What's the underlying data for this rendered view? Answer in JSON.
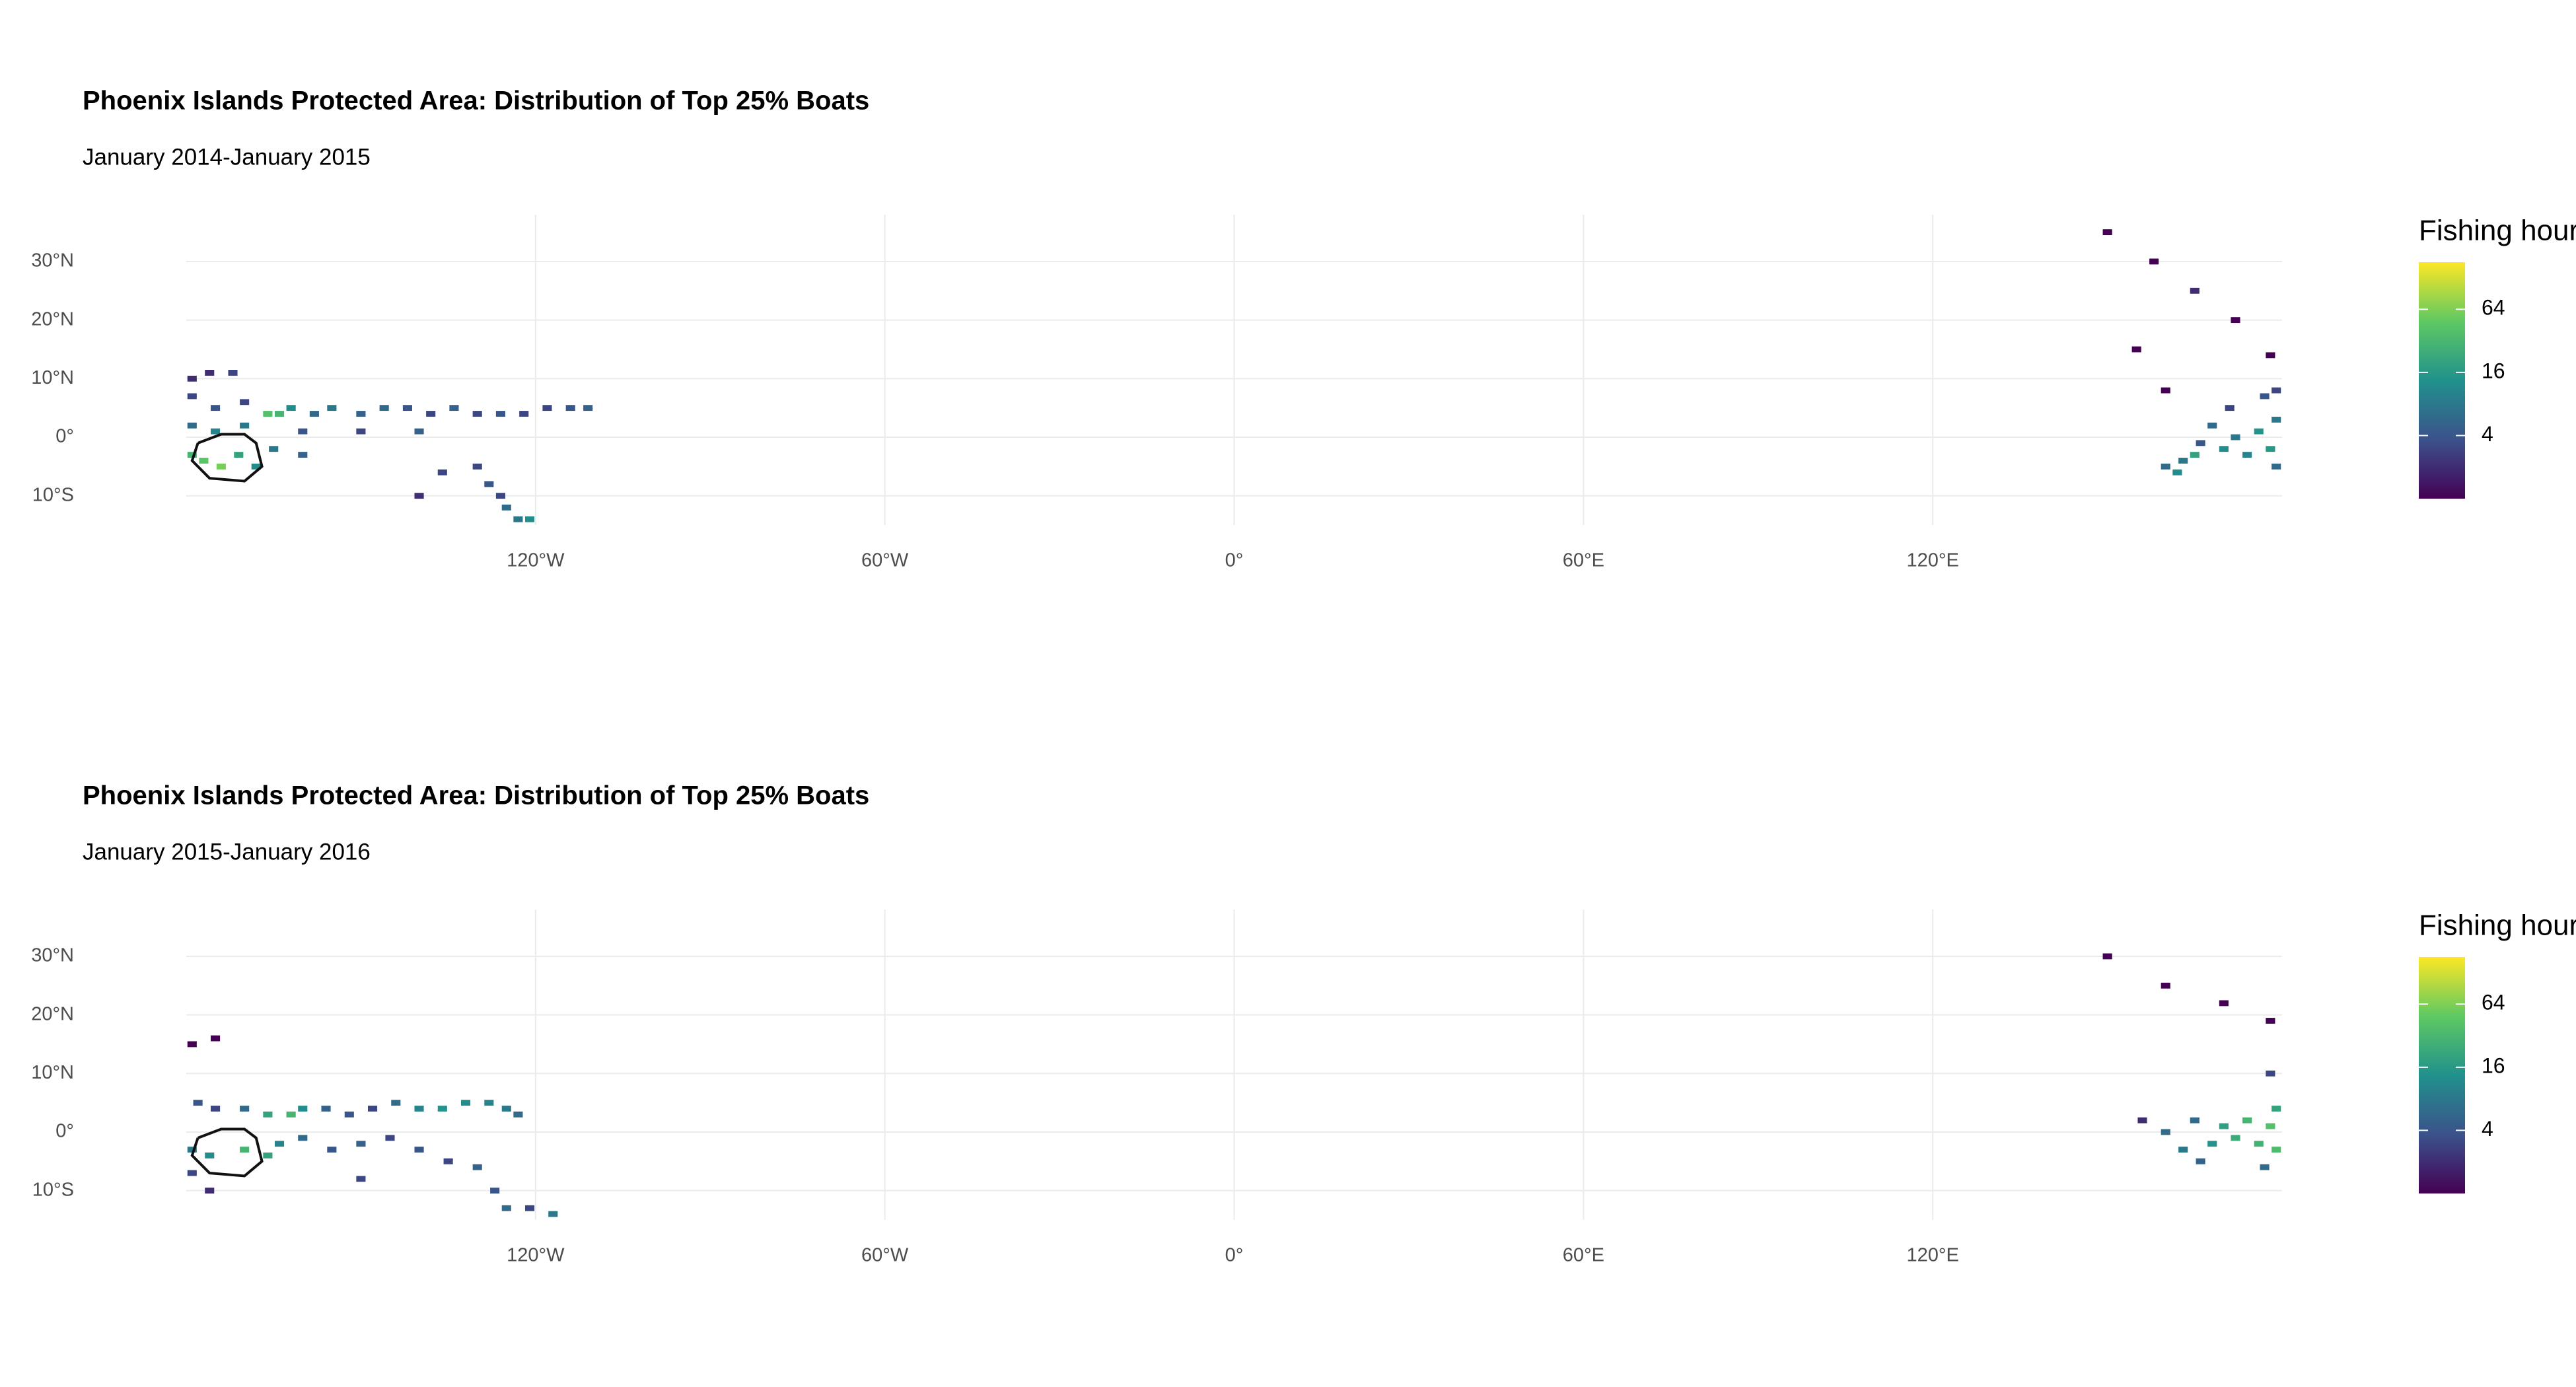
{
  "chart_data": [
    {
      "type": "map",
      "title": "Phoenix Islands Protected Area: Distribution of Top 25% Boats",
      "subtitle": "January 2014-January 2015",
      "xlim": [
        -180,
        180
      ],
      "ylim": [
        -15,
        38
      ],
      "xticks": [
        {
          "value": -120,
          "label": "120°W"
        },
        {
          "value": -60,
          "label": "60°W"
        },
        {
          "value": 0,
          "label": "0°"
        },
        {
          "value": 60,
          "label": "60°E"
        },
        {
          "value": 120,
          "label": "120°E"
        }
      ],
      "yticks": [
        {
          "value": -10,
          "label": "10°S"
        },
        {
          "value": 0,
          "label": "0°"
        },
        {
          "value": 10,
          "label": "10°N"
        },
        {
          "value": 20,
          "label": "20°N"
        },
        {
          "value": 30,
          "label": "30°N"
        }
      ],
      "grid": true,
      "x": [
        -179,
        -176,
        -172,
        -179,
        -175,
        -170,
        -166,
        -164,
        -162,
        -158,
        -155,
        -150,
        -146,
        -142,
        -138,
        -134,
        -130,
        -126,
        -122,
        -118,
        -114,
        -111,
        -179,
        -175,
        -170,
        -160,
        -150,
        -140,
        -179,
        -177,
        -174,
        -171,
        -168,
        -165,
        -160,
        -130,
        -128,
        -126,
        -125,
        -123,
        -121,
        -136,
        -140,
        160,
        163,
        166,
        168,
        170,
        172,
        174,
        176,
        178,
        179,
        179,
        177,
        179,
        171,
        162,
        165,
        150,
        158,
        165,
        172,
        178,
        155,
        160
      ],
      "y": [
        10,
        11,
        11,
        7,
        5,
        6,
        4,
        4,
        5,
        4,
        5,
        4,
        5,
        5,
        4,
        5,
        4,
        4,
        4,
        5,
        5,
        5,
        2,
        1,
        2,
        1,
        1,
        1,
        -3,
        -4,
        -5,
        -3,
        -5,
        -2,
        -3,
        -5,
        -8,
        -10,
        -12,
        -14,
        -14,
        -6,
        -10,
        -5,
        -4,
        -1,
        2,
        -2,
        0,
        -3,
        1,
        -2,
        3,
        -5,
        7,
        8,
        5,
        -6,
        -3,
        35,
        30,
        25,
        20,
        14,
        15,
        8
      ],
      "values": [
        2,
        2,
        3,
        3,
        4,
        3,
        40,
        30,
        12,
        6,
        8,
        5,
        6,
        4,
        3,
        5,
        3,
        4,
        3,
        3,
        4,
        5,
        6,
        10,
        8,
        4,
        3,
        5,
        30,
        45,
        60,
        20,
        12,
        8,
        5,
        3,
        4,
        3,
        6,
        8,
        12,
        3,
        2,
        6,
        8,
        4,
        6,
        12,
        8,
        10,
        14,
        16,
        8,
        6,
        4,
        3,
        3,
        12,
        20,
        1,
        1,
        2,
        1,
        1,
        1,
        1
      ],
      "outline": {
        "x": [
          -178,
          -174,
          -170,
          -168,
          -167,
          -170,
          -176,
          -179,
          -178
        ],
        "y": [
          -1,
          0.5,
          0.5,
          -1,
          -5,
          -7.5,
          -7,
          -4,
          -1
        ]
      },
      "legend": {
        "title": "Fishing hours",
        "ticks": [
          4,
          16,
          64
        ],
        "lim": [
          1,
          180
        ],
        "log": true,
        "colors": [
          "#440154",
          "#3b528b",
          "#21918c",
          "#5ec962",
          "#fde725"
        ]
      }
    },
    {
      "type": "map",
      "title": "Phoenix Islands Protected Area: Distribution of Top 25% Boats",
      "subtitle": "January 2015-January 2016",
      "xlim": [
        -180,
        180
      ],
      "ylim": [
        -15,
        38
      ],
      "xticks": [
        {
          "value": -120,
          "label": "120°W"
        },
        {
          "value": -60,
          "label": "60°W"
        },
        {
          "value": 0,
          "label": "0°"
        },
        {
          "value": 60,
          "label": "60°E"
        },
        {
          "value": 120,
          "label": "120°E"
        }
      ],
      "yticks": [
        {
          "value": -10,
          "label": "10°S"
        },
        {
          "value": 0,
          "label": "0°"
        },
        {
          "value": 10,
          "label": "10°N"
        },
        {
          "value": 20,
          "label": "20°N"
        },
        {
          "value": 30,
          "label": "30°N"
        }
      ],
      "grid": true,
      "x": [
        -179,
        -175,
        -178,
        -175,
        -170,
        -166,
        -162,
        -160,
        -156,
        -152,
        -148,
        -144,
        -140,
        -136,
        -132,
        -128,
        -125,
        -123,
        -179,
        -176,
        -170,
        -166,
        -164,
        -160,
        -155,
        -150,
        -145,
        -140,
        -135,
        -130,
        -127,
        -125,
        -121,
        -117,
        -179,
        -176,
        -150,
        160,
        163,
        165,
        168,
        170,
        172,
        174,
        176,
        178,
        179,
        179,
        177,
        166,
        178,
        150,
        160,
        170,
        178,
        156
      ],
      "y": [
        15,
        16,
        5,
        4,
        4,
        3,
        3,
        4,
        4,
        3,
        4,
        5,
        4,
        4,
        5,
        5,
        4,
        3,
        -3,
        -4,
        -3,
        -4,
        -2,
        -1,
        -3,
        -2,
        -1,
        -3,
        -5,
        -6,
        -10,
        -13,
        -13,
        -14,
        -7,
        -10,
        -8,
        0,
        -3,
        2,
        -2,
        1,
        -1,
        2,
        -2,
        1,
        -3,
        4,
        -6,
        -5,
        10,
        30,
        25,
        22,
        19,
        2
      ],
      "values": [
        1,
        1,
        4,
        3,
        6,
        20,
        30,
        12,
        5,
        4,
        3,
        6,
        10,
        14,
        12,
        10,
        8,
        6,
        8,
        12,
        30,
        20,
        10,
        6,
        4,
        5,
        3,
        4,
        3,
        5,
        4,
        6,
        3,
        8,
        3,
        2,
        3,
        6,
        8,
        6,
        14,
        18,
        24,
        30,
        28,
        40,
        36,
        20,
        6,
        5,
        3,
        1,
        1,
        1,
        1,
        2
      ],
      "outline": {
        "x": [
          -178,
          -174,
          -170,
          -168,
          -167,
          -170,
          -176,
          -179,
          -178
        ],
        "y": [
          -1,
          0.5,
          0.5,
          -1,
          -5,
          -7.5,
          -7,
          -4,
          -1
        ]
      },
      "legend": {
        "title": "Fishing hours",
        "ticks": [
          4,
          16,
          64
        ],
        "lim": [
          1,
          180
        ],
        "log": true,
        "colors": [
          "#440154",
          "#3b528b",
          "#21918c",
          "#5ec962",
          "#fde725"
        ]
      }
    }
  ]
}
